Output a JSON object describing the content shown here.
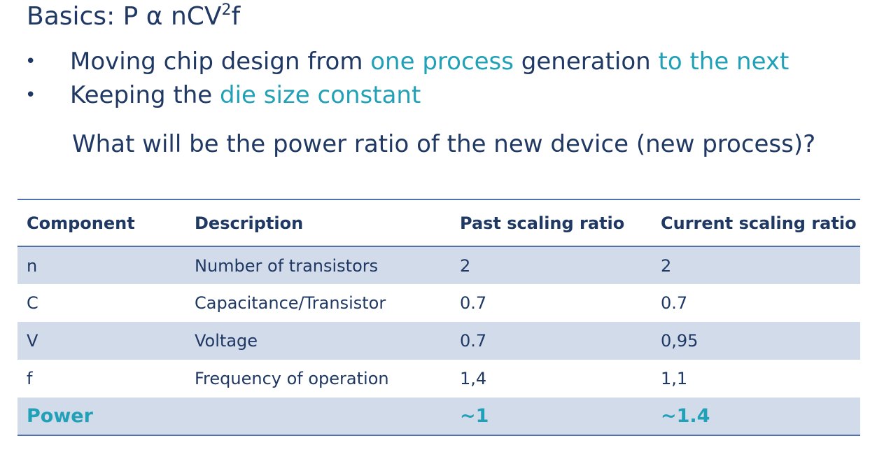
{
  "slide": {
    "title": {
      "prefix": "Basics: P α nCV",
      "superscript": "2",
      "suffix": "f"
    },
    "bullets": [
      {
        "parts": [
          {
            "text": "Moving chip design from ",
            "highlight": false
          },
          {
            "text": "one process",
            "highlight": true
          },
          {
            "text": " generation ",
            "highlight": false
          },
          {
            "text": "to the next",
            "highlight": true
          }
        ]
      },
      {
        "parts": [
          {
            "text": "Keeping the ",
            "highlight": false
          },
          {
            "text": "die size constant",
            "highlight": true
          }
        ]
      }
    ],
    "bullet_glyph": "•",
    "question": "What will be the power ratio of the new device (new process)?"
  },
  "table": {
    "headers": [
      "Component",
      "Description",
      "Past scaling ratio",
      "Current scaling ratio"
    ],
    "rows": [
      {
        "cells": [
          "n",
          "Number of transistors",
          "2",
          "2"
        ],
        "shaded": true
      },
      {
        "cells": [
          "C",
          "Capacitance/Transistor",
          "0.7",
          "0.7"
        ],
        "shaded": false
      },
      {
        "cells": [
          "V",
          "Voltage",
          "0.7",
          "0,95"
        ],
        "shaded": true
      },
      {
        "cells": [
          "f",
          "Frequency of operation",
          "1,4",
          "1,1"
        ],
        "shaded": false
      }
    ],
    "total_row": {
      "cells": [
        "Power",
        "",
        "~1",
        "~1.4"
      ],
      "shaded": true
    }
  },
  "colors": {
    "text": "#1f3864",
    "highlight": "#21a1b8",
    "row_shade": "#d2dbea",
    "rule": "#4f6fad"
  }
}
